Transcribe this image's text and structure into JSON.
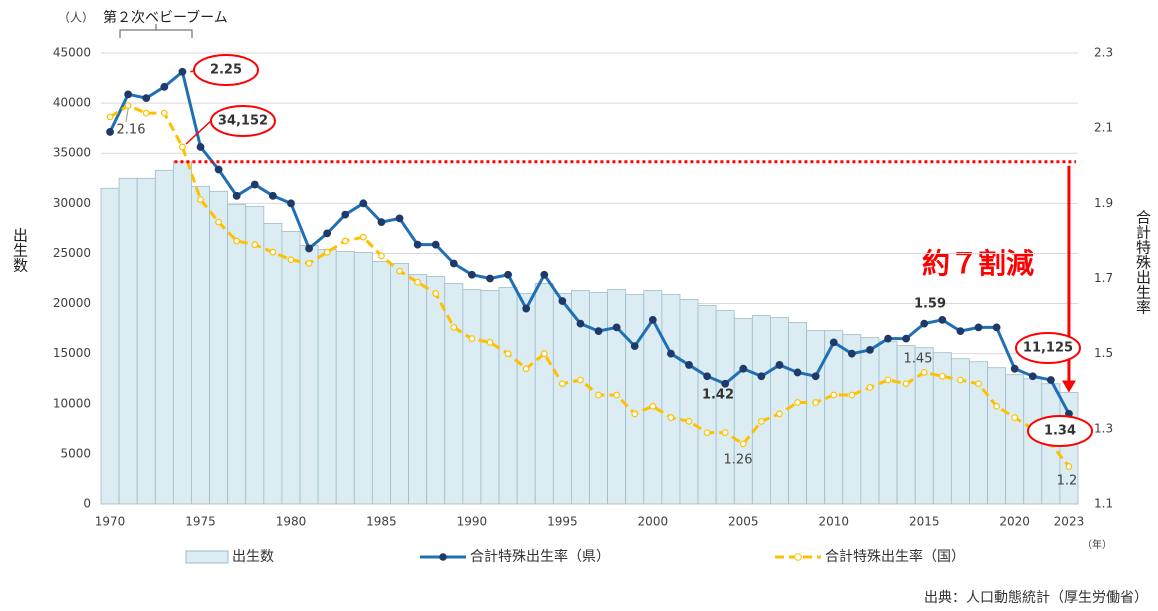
{
  "chart_data": {
    "type": "bar_line_combo",
    "unit_label": "（人）",
    "boom_label": "第２次ベビーブーム",
    "y_label": "出生数",
    "y2_label": "合計特殊出生率",
    "x_unit": "（年）",
    "callout": "約７割減",
    "source": "出典：人口動態統計（厚生労働省）",
    "categories": [
      "1970",
      null,
      null,
      null,
      null,
      "1975",
      null,
      null,
      null,
      null,
      "1980",
      null,
      null,
      null,
      null,
      "1985",
      null,
      null,
      null,
      null,
      "1990",
      null,
      null,
      null,
      null,
      "1995",
      null,
      null,
      null,
      null,
      "2000",
      null,
      null,
      null,
      null,
      "2005",
      null,
      null,
      null,
      null,
      "2010",
      null,
      null,
      null,
      null,
      "2015",
      null,
      null,
      null,
      null,
      "2020",
      null,
      null,
      "2023"
    ],
    "ylim": [
      0,
      45000
    ],
    "yticks": [
      0,
      5000,
      10000,
      15000,
      20000,
      25000,
      30000,
      35000,
      40000,
      45000
    ],
    "y2lim": [
      1.1,
      2.3
    ],
    "y2ticks": [
      1.1,
      1.3,
      1.5,
      1.7,
      1.9,
      2.1,
      2.3
    ],
    "grid": true,
    "legend": "bottom",
    "series": [
      {
        "name": "出生数",
        "kind": "bar",
        "color": "#dbecf2",
        "values": [
          31500,
          32500,
          32500,
          33300,
          34152,
          31700,
          31200,
          29900,
          29700,
          28000,
          27200,
          25800,
          25400,
          25200,
          25100,
          24200,
          24000,
          22900,
          22700,
          22000,
          21400,
          21300,
          21600,
          21000,
          22000,
          21000,
          21300,
          21100,
          21400,
          20900,
          21300,
          20900,
          20400,
          19800,
          19300,
          18500,
          18800,
          18600,
          18100,
          17300,
          17300,
          16900,
          16600,
          16200,
          15800,
          15600,
          15100,
          14500,
          14200,
          13600,
          12900,
          12500,
          12000,
          11125
        ],
        "value_labels": [
          null,
          null,
          null,
          null,
          "34,152",
          null,
          null,
          null,
          null,
          null,
          null,
          null,
          null,
          null,
          null,
          null,
          null,
          null,
          null,
          null,
          null,
          null,
          null,
          null,
          null,
          null,
          null,
          null,
          null,
          null,
          null,
          null,
          null,
          null,
          null,
          null,
          null,
          null,
          null,
          null,
          null,
          null,
          null,
          null,
          null,
          null,
          null,
          null,
          null,
          null,
          null,
          null,
          null,
          "11,125"
        ]
      },
      {
        "name": "合計特殊出生率（県）",
        "kind": "line",
        "axis": "y2",
        "color": "#1f6fb5",
        "values": [
          2.09,
          2.19,
          2.18,
          2.21,
          2.25,
          2.05,
          1.99,
          1.92,
          1.95,
          1.92,
          1.9,
          1.78,
          1.82,
          1.87,
          1.9,
          1.85,
          1.86,
          1.79,
          1.79,
          1.74,
          1.71,
          1.7,
          1.71,
          1.62,
          1.71,
          1.64,
          1.58,
          1.56,
          1.57,
          1.52,
          1.59,
          1.5,
          1.47,
          1.44,
          1.42,
          1.46,
          1.44,
          1.47,
          1.45,
          1.44,
          1.53,
          1.5,
          1.51,
          1.54,
          1.54,
          1.58,
          1.59,
          1.56,
          1.57,
          1.57,
          1.46,
          1.44,
          1.43,
          1.34
        ],
        "value_labels": [
          null,
          null,
          null,
          null,
          "2.25",
          null,
          null,
          null,
          null,
          null,
          null,
          null,
          null,
          null,
          null,
          null,
          null,
          null,
          null,
          null,
          null,
          null,
          null,
          null,
          null,
          null,
          null,
          null,
          null,
          null,
          null,
          null,
          null,
          null,
          "1.42",
          null,
          null,
          null,
          null,
          null,
          null,
          null,
          null,
          null,
          null,
          null,
          "1.59",
          null,
          null,
          null,
          null,
          null,
          null,
          "1.34"
        ]
      },
      {
        "name": "合計特殊出生率（国）",
        "kind": "line",
        "axis": "y2",
        "color": "#ffc000",
        "dashed": true,
        "values": [
          2.13,
          2.16,
          2.14,
          2.14,
          2.05,
          1.91,
          1.85,
          1.8,
          1.79,
          1.77,
          1.75,
          1.74,
          1.77,
          1.8,
          1.81,
          1.76,
          1.72,
          1.69,
          1.66,
          1.57,
          1.54,
          1.53,
          1.5,
          1.46,
          1.5,
          1.42,
          1.43,
          1.39,
          1.39,
          1.34,
          1.36,
          1.33,
          1.32,
          1.29,
          1.29,
          1.26,
          1.32,
          1.34,
          1.37,
          1.37,
          1.39,
          1.39,
          1.41,
          1.43,
          1.42,
          1.45,
          1.44,
          1.43,
          1.42,
          1.36,
          1.33,
          1.3,
          1.26,
          1.2
        ],
        "value_labels": [
          null,
          "2.16",
          null,
          null,
          null,
          null,
          null,
          null,
          null,
          null,
          null,
          null,
          null,
          null,
          null,
          null,
          null,
          null,
          null,
          null,
          null,
          null,
          null,
          null,
          null,
          null,
          null,
          null,
          null,
          null,
          null,
          null,
          null,
          null,
          null,
          "1.26",
          null,
          null,
          null,
          null,
          null,
          null,
          null,
          null,
          null,
          "1.45",
          null,
          null,
          null,
          null,
          null,
          null,
          null,
          "1.2"
        ]
      }
    ]
  }
}
